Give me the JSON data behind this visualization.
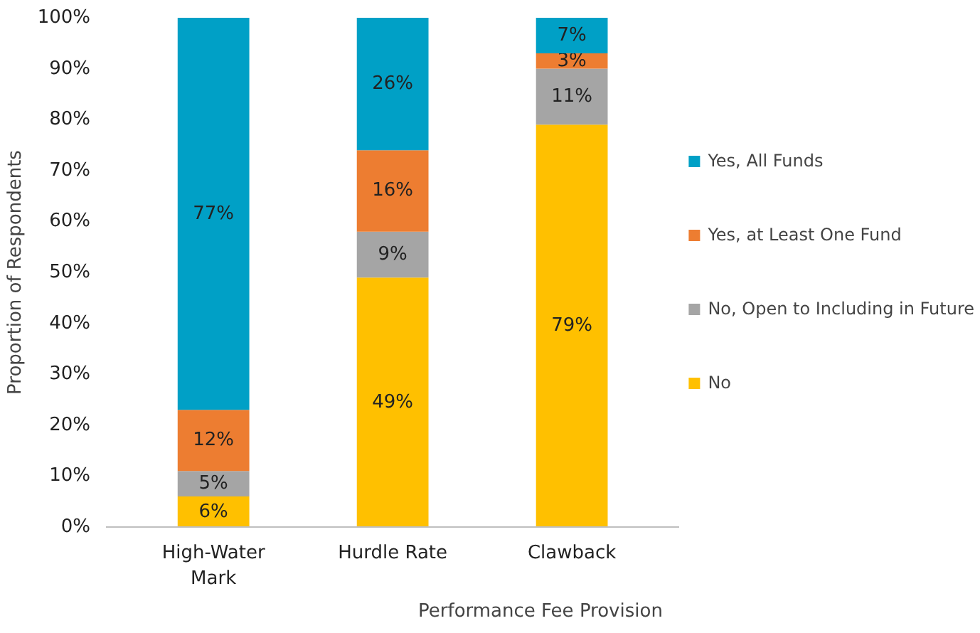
{
  "chart_data": {
    "type": "bar",
    "stacked": true,
    "xlabel": "Performance Fee Provision",
    "ylabel": "Proportion of Respondents",
    "categories": [
      "High-Water Mark",
      "Hurdle Rate",
      "Clawback"
    ],
    "series": [
      {
        "name": "No",
        "color": "#ffc000",
        "values": [
          6,
          49,
          79
        ],
        "value_labels": [
          "6%",
          "49%",
          "79%"
        ]
      },
      {
        "name": "No, Open to Including in Future",
        "color": "#a5a5a5",
        "values": [
          5,
          9,
          11
        ],
        "value_labels": [
          "5%",
          "9%",
          "11%"
        ]
      },
      {
        "name": "Yes, at Least One Fund",
        "color": "#ed7d31",
        "values": [
          12,
          16,
          3
        ],
        "value_labels": [
          "12%",
          "16%",
          "3%"
        ]
      },
      {
        "name": "Yes, All Funds",
        "color": "#00a0c6",
        "values": [
          77,
          26,
          7
        ],
        "value_labels": [
          "77%",
          "26%",
          "7%"
        ]
      }
    ],
    "ylim": [
      0,
      100
    ],
    "yticks": [
      {
        "value": 0,
        "label": "0%"
      },
      {
        "value": 10,
        "label": "10%"
      },
      {
        "value": 20,
        "label": "20%"
      },
      {
        "value": 30,
        "label": "30%"
      },
      {
        "value": 40,
        "label": "40%"
      },
      {
        "value": 50,
        "label": "50%"
      },
      {
        "value": 60,
        "label": "60%"
      },
      {
        "value": 70,
        "label": "70%"
      },
      {
        "value": 80,
        "label": "80%"
      },
      {
        "value": 90,
        "label": "90%"
      },
      {
        "value": 100,
        "label": "100%"
      }
    ],
    "grid": false,
    "legend": "right"
  }
}
